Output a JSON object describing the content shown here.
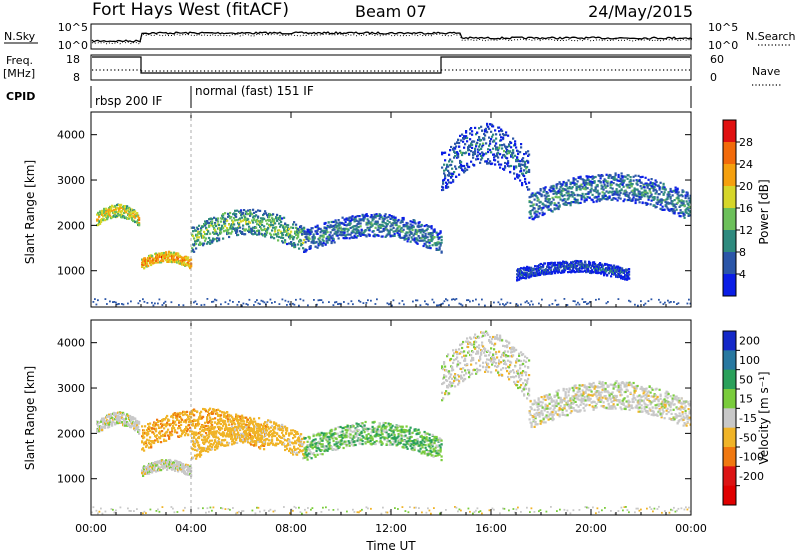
{
  "header": {
    "title": "Fort Hays West (fitACF)",
    "beam": "Beam 07",
    "date": "24/May/2015"
  },
  "noise_panel": {
    "left_label": "N.Sky",
    "right_label": "N.Search",
    "left_ticks": [
      "10^5",
      "10^0"
    ],
    "right_ticks": [
      "10^5",
      "10^0"
    ]
  },
  "freq_panel": {
    "left_label": "Freq.",
    "left_unit": "[MHz]",
    "right_label": "Nave",
    "left_ticks": [
      "18",
      "8"
    ],
    "right_ticks": [
      "60",
      "0"
    ]
  },
  "cpid": {
    "label": "CPID",
    "modes": [
      {
        "name": "rbsp 200 IF",
        "start_hour": 0,
        "end_hour": 4
      },
      {
        "name": "normal (fast) 151 IF",
        "start_hour": 4,
        "end_hour": 24
      }
    ]
  },
  "chart_data": [
    {
      "type": "heatmap",
      "name": "power",
      "xlabel": "",
      "ylabel": "Slant Range [km]",
      "xlim": [
        0,
        24
      ],
      "ylim": [
        200,
        4500
      ],
      "yticks": [
        1000,
        2000,
        3000,
        4000
      ],
      "colorbar": {
        "label": "Power [dB]",
        "ticks": [
          4,
          8,
          12,
          16,
          20,
          24,
          28
        ],
        "range": [
          0,
          32
        ],
        "colors": [
          "#0b1ee6",
          "#2b56a8",
          "#2e8a7e",
          "#6cc05a",
          "#d6d62a",
          "#f5a00e",
          "#f26a0a",
          "#e01010"
        ]
      },
      "echo_bands": [
        {
          "start_hour": 0.2,
          "end_hour": 1.9,
          "range_km": [
            2000,
            2500
          ],
          "power_db": 20
        },
        {
          "start_hour": 2.0,
          "end_hour": 4.0,
          "range_km": [
            1050,
            1450
          ],
          "power_db": 24
        },
        {
          "start_hour": 4.0,
          "end_hour": 8.5,
          "range_km": [
            1400,
            2400
          ],
          "power_db": 14
        },
        {
          "start_hour": 8.5,
          "end_hour": 14.0,
          "range_km": [
            1400,
            2300
          ],
          "power_db": 10
        },
        {
          "start_hour": 14.0,
          "end_hour": 17.5,
          "range_km": [
            2700,
            4300
          ],
          "power_db": 8
        },
        {
          "start_hour": 17.5,
          "end_hour": 24.0,
          "range_km": [
            2100,
            3200
          ],
          "power_db": 10
        },
        {
          "start_hour": 17.0,
          "end_hour": 21.5,
          "range_km": [
            800,
            1250
          ],
          "power_db": 6
        }
      ]
    },
    {
      "type": "heatmap",
      "name": "velocity",
      "xlabel": "Time UT",
      "ylabel": "Slant Range [km]",
      "xlim": [
        0,
        24
      ],
      "ylim": [
        200,
        4500
      ],
      "xticks": [
        "00:00",
        "04:00",
        "08:00",
        "12:00",
        "16:00",
        "20:00",
        "00:00"
      ],
      "yticks": [
        1000,
        2000,
        3000,
        4000
      ],
      "colorbar": {
        "label": "Velocity [m s⁻¹]",
        "ticks": [
          200,
          100,
          50,
          15,
          -15,
          -50,
          -100,
          -200
        ],
        "colors": [
          "#1428c8",
          "#2878a0",
          "#2aa05a",
          "#7acc3c",
          "#c8c8c8",
          "#f0b428",
          "#f07810",
          "#dc1414",
          "#e00000"
        ]
      },
      "echo_bands": [
        {
          "start_hour": 0.2,
          "end_hour": 1.9,
          "range_km": [
            2000,
            2500
          ],
          "velocity": 0
        },
        {
          "start_hour": 2.0,
          "end_hour": 4.0,
          "range_km": [
            1050,
            1450
          ],
          "velocity": 0
        },
        {
          "start_hour": 2.0,
          "end_hour": 7.0,
          "range_km": [
            1600,
            2600
          ],
          "velocity": -40
        },
        {
          "start_hour": 4.0,
          "end_hour": 8.5,
          "range_km": [
            1400,
            2400
          ],
          "velocity": -30
        },
        {
          "start_hour": 8.5,
          "end_hour": 14.0,
          "range_km": [
            1400,
            2300
          ],
          "velocity": 25
        },
        {
          "start_hour": 14.0,
          "end_hour": 17.5,
          "range_km": [
            2700,
            4300
          ],
          "velocity": 0
        },
        {
          "start_hour": 17.5,
          "end_hour": 24.0,
          "range_km": [
            2100,
            3200
          ],
          "velocity": 0
        }
      ]
    }
  ]
}
